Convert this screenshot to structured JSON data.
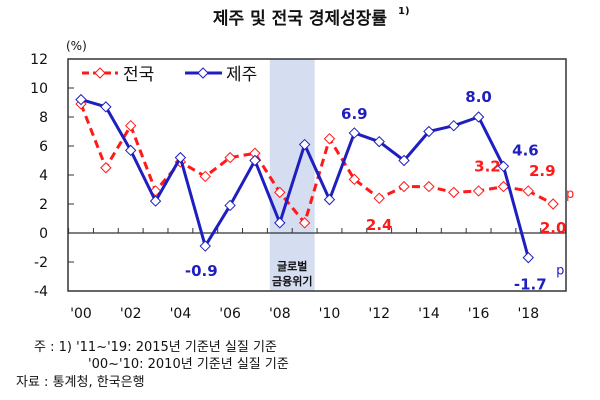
{
  "chart_data": {
    "type": "line",
    "title": "제주 및 전국 경제성장률",
    "title_sup": "1)",
    "unit_label": "(%)",
    "x": [
      2000,
      2001,
      2002,
      2003,
      2004,
      2005,
      2006,
      2007,
      2008,
      2009,
      2010,
      2011,
      2012,
      2013,
      2014,
      2015,
      2016,
      2017,
      2018,
      2019
    ],
    "x_tick_labels": [
      "'00",
      "'02",
      "'04",
      "'06",
      "'08",
      "'10",
      "'12",
      "'14",
      "'16",
      "'18"
    ],
    "x_tick_years": [
      2000,
      2002,
      2004,
      2006,
      2008,
      2010,
      2012,
      2014,
      2016,
      2018
    ],
    "ylim": [
      -4,
      12
    ],
    "y_ticks": [
      -4,
      -2,
      0,
      2,
      4,
      6,
      8,
      10,
      12
    ],
    "legend_placement": "top-left",
    "series": [
      {
        "name": "전국",
        "color": "#ff1a1a",
        "style": "dashed",
        "values": [
          8.9,
          4.5,
          7.4,
          2.9,
          4.9,
          3.9,
          5.2,
          5.5,
          2.8,
          0.7,
          6.5,
          3.7,
          2.4,
          3.2,
          3.2,
          2.8,
          2.9,
          3.2,
          2.9,
          2.0
        ]
      },
      {
        "name": "제주",
        "color": "#1f1fbf",
        "style": "solid",
        "values": [
          9.2,
          8.7,
          5.7,
          2.2,
          5.2,
          -0.9,
          1.9,
          5.0,
          0.7,
          6.1,
          2.3,
          6.9,
          6.3,
          5.0,
          7.0,
          7.4,
          8.0,
          4.6,
          -1.7,
          null
        ]
      }
    ],
    "annotations": {
      "shaded_period": {
        "from": 2008,
        "to": 2009,
        "label_line1": "글로벌",
        "label_line2": "금융위기",
        "color": "#d5ddf0"
      },
      "data_labels": [
        {
          "series": 1,
          "year": 2005,
          "text": "-0.9"
        },
        {
          "series": 1,
          "year": 2011,
          "text": "6.9"
        },
        {
          "series": 1,
          "year": 2016,
          "text": "8.0"
        },
        {
          "series": 1,
          "year": 2017,
          "text": "4.6"
        },
        {
          "series": 1,
          "year": 2018,
          "text": "-1.7"
        },
        {
          "series": 1,
          "year": 2018,
          "text": "p"
        },
        {
          "series": 0,
          "year": 2012,
          "text": "2.4"
        },
        {
          "series": 0,
          "year": 2017,
          "text": "3.2"
        },
        {
          "series": 0,
          "year": 2018,
          "text": "2.9"
        },
        {
          "series": 0,
          "year": 2019,
          "text": "2.0"
        },
        {
          "series": 0,
          "year": 2019,
          "text": "p"
        }
      ]
    }
  },
  "footnotes": {
    "note_line1": "주 : 1) '11~'19: 2015년 기준년 실질 기준",
    "note_line2": "'00~'10: 2010년 기준년 실질 기준",
    "source": "자료 : 통계청, 한국은행"
  }
}
